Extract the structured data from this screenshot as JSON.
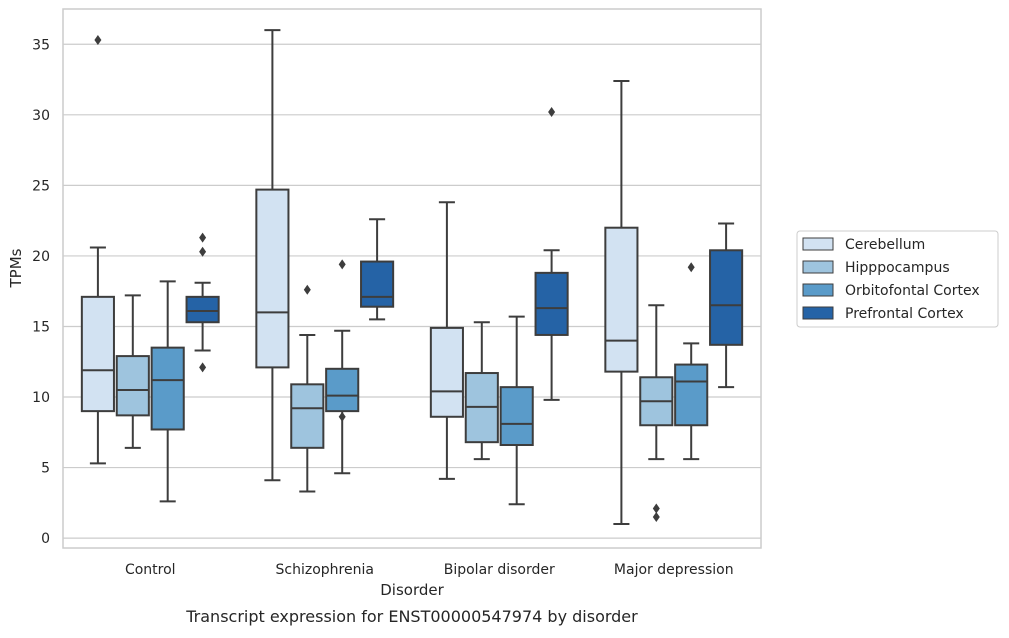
{
  "chart_data": {
    "type": "box",
    "xlabel": "Disorder",
    "ylabel": "TPMs",
    "caption": "Transcript expression for ENST00000547974 by disorder",
    "categories": [
      "Control",
      "Schizophrenia",
      "Bipolar disorder",
      "Major depression"
    ],
    "ylim": [
      -0.7,
      37.5
    ],
    "yticks": [
      0,
      5,
      10,
      15,
      20,
      25,
      30,
      35
    ],
    "grid": "horizontal",
    "legend_position": "right",
    "series": [
      {
        "name": "Cerebellum",
        "color": "#d2e2f2",
        "boxes": [
          {
            "whisker_low": 5.3,
            "q1": 9.0,
            "median": 11.9,
            "q3": 17.1,
            "whisker_high": 20.6,
            "outliers": [
              35.3
            ]
          },
          {
            "whisker_low": 4.1,
            "q1": 12.1,
            "median": 16.0,
            "q3": 24.7,
            "whisker_high": 36.0,
            "outliers": []
          },
          {
            "whisker_low": 4.2,
            "q1": 8.6,
            "median": 10.4,
            "q3": 14.9,
            "whisker_high": 23.8,
            "outliers": []
          },
          {
            "whisker_low": 1.0,
            "q1": 11.8,
            "median": 14.0,
            "q3": 22.0,
            "whisker_high": 32.4,
            "outliers": []
          }
        ]
      },
      {
        "name": "Hipppocampus",
        "color": "#9ec4de",
        "boxes": [
          {
            "whisker_low": 6.4,
            "q1": 8.7,
            "median": 10.5,
            "q3": 12.9,
            "whisker_high": 17.2,
            "outliers": []
          },
          {
            "whisker_low": 3.3,
            "q1": 6.4,
            "median": 9.2,
            "q3": 10.9,
            "whisker_high": 14.4,
            "outliers": [
              17.6
            ]
          },
          {
            "whisker_low": 5.6,
            "q1": 6.8,
            "median": 9.3,
            "q3": 11.7,
            "whisker_high": 15.3,
            "outliers": []
          },
          {
            "whisker_low": 5.6,
            "q1": 8.0,
            "median": 9.7,
            "q3": 11.4,
            "whisker_high": 16.5,
            "outliers": [
              2.1,
              1.5
            ]
          }
        ]
      },
      {
        "name": "Orbitofontal Cortex",
        "color": "#5a9bc9",
        "boxes": [
          {
            "whisker_low": 2.6,
            "q1": 7.7,
            "median": 11.2,
            "q3": 13.5,
            "whisker_high": 18.2,
            "outliers": []
          },
          {
            "whisker_low": 4.6,
            "q1": 9.0,
            "median": 10.1,
            "q3": 12.0,
            "whisker_high": 14.7,
            "outliers": [
              19.4,
              8.6
            ]
          },
          {
            "whisker_low": 2.4,
            "q1": 6.6,
            "median": 8.1,
            "q3": 10.7,
            "whisker_high": 15.7,
            "outliers": []
          },
          {
            "whisker_low": 5.6,
            "q1": 8.0,
            "median": 11.1,
            "q3": 12.3,
            "whisker_high": 13.8,
            "outliers": [
              19.2
            ]
          }
        ]
      },
      {
        "name": "Prefrontal Cortex",
        "color": "#2563a6",
        "boxes": [
          {
            "whisker_low": 13.3,
            "q1": 15.3,
            "median": 16.1,
            "q3": 17.1,
            "whisker_high": 18.1,
            "outliers": [
              21.3,
              20.3,
              12.1
            ]
          },
          {
            "whisker_low": 15.5,
            "q1": 16.4,
            "median": 17.1,
            "q3": 19.6,
            "whisker_high": 22.6,
            "outliers": []
          },
          {
            "whisker_low": 9.8,
            "q1": 14.4,
            "median": 16.3,
            "q3": 18.8,
            "whisker_high": 20.4,
            "outliers": [
              30.2
            ]
          },
          {
            "whisker_low": 10.7,
            "q1": 13.7,
            "median": 16.5,
            "q3": 20.4,
            "whisker_high": 22.3,
            "outliers": []
          }
        ]
      }
    ]
  }
}
